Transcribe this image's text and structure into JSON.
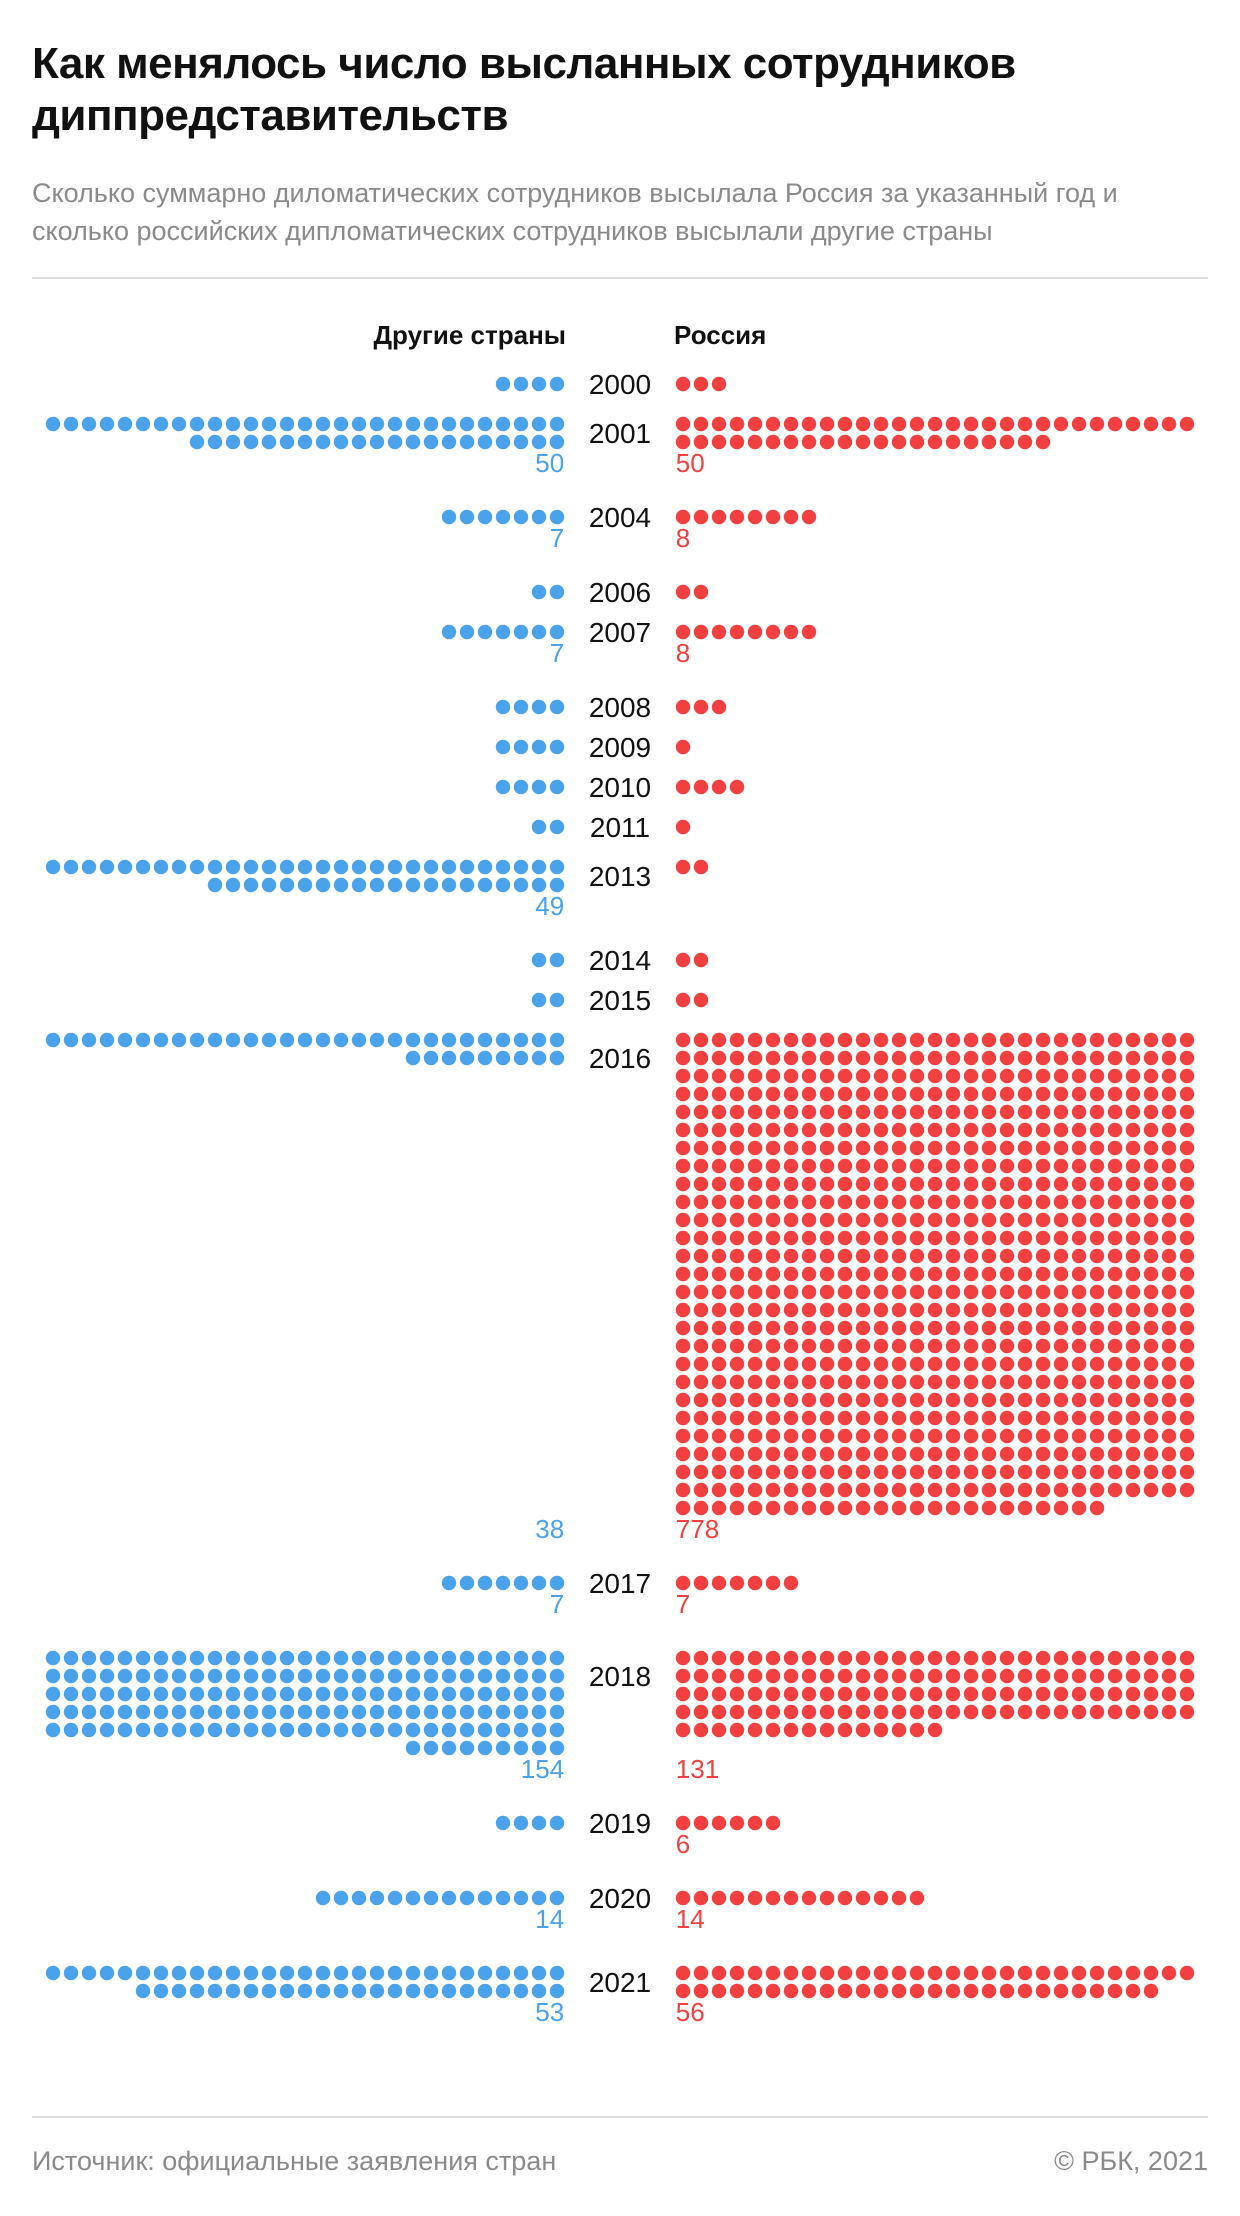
{
  "header": {
    "title": "Как менялось число высланных сотрудников диппредставительств",
    "subtitle": "Сколько суммарно диломатических сотрудников высылала Россия за указанный год и сколько российских дипломатических сотрудников высылали другие страны"
  },
  "footer": {
    "source": "Источник: официальные заявления стран",
    "copyright": "© РБК, 2021"
  },
  "colors": {
    "other_countries": "#4aa3ea",
    "russia": "#f23f3f",
    "year_text": "#111111",
    "muted_text": "#8a8a8a"
  },
  "chart_data": {
    "type": "dot-matrix",
    "legend_placement": "top",
    "series": [
      {
        "name": "Другие страны",
        "key": "other_countries"
      },
      {
        "name": "Россия",
        "key": "russia"
      }
    ],
    "rows": [
      {
        "year": "2000",
        "other_countries": 4,
        "russia": 3,
        "label_other": "",
        "label_russia": ""
      },
      {
        "year": "2001",
        "other_countries": 50,
        "russia": 50,
        "label_other": "50",
        "label_russia": "50"
      },
      {
        "year": "2004",
        "other_countries": 7,
        "russia": 8,
        "label_other": "7",
        "label_russia": "8"
      },
      {
        "year": "2006",
        "other_countries": 2,
        "russia": 2,
        "label_other": "",
        "label_russia": ""
      },
      {
        "year": "2007",
        "other_countries": 7,
        "russia": 8,
        "label_other": "7",
        "label_russia": "8"
      },
      {
        "year": "2008",
        "other_countries": 4,
        "russia": 3,
        "label_other": "",
        "label_russia": ""
      },
      {
        "year": "2009",
        "other_countries": 4,
        "russia": 1,
        "label_other": "",
        "label_russia": ""
      },
      {
        "year": "2010",
        "other_countries": 4,
        "russia": 4,
        "label_other": "",
        "label_russia": ""
      },
      {
        "year": "2011",
        "other_countries": 2,
        "russia": 1,
        "label_other": "",
        "label_russia": ""
      },
      {
        "year": "2013",
        "other_countries": 49,
        "russia": 2,
        "label_other": "49",
        "label_russia": ""
      },
      {
        "year": "2014",
        "other_countries": 2,
        "russia": 2,
        "label_other": "",
        "label_russia": ""
      },
      {
        "year": "2015",
        "other_countries": 2,
        "russia": 2,
        "label_other": "",
        "label_russia": ""
      },
      {
        "year": "2016",
        "other_countries": 38,
        "russia": 778,
        "label_other": "38",
        "label_russia": "778"
      },
      {
        "year": "2017",
        "other_countries": 7,
        "russia": 7,
        "label_other": "7",
        "label_russia": "7"
      },
      {
        "year": "2018",
        "other_countries": 154,
        "russia": 131,
        "label_other": "154",
        "label_russia": "131"
      },
      {
        "year": "2019",
        "other_countries": 4,
        "russia": 6,
        "label_other": "",
        "label_russia": "6"
      },
      {
        "year": "2020",
        "other_countries": 14,
        "russia": 14,
        "label_other": "14",
        "label_russia": "14"
      },
      {
        "year": "2021",
        "other_countries": 53,
        "russia": 56,
        "label_other": "53",
        "label_russia": "56"
      }
    ]
  }
}
